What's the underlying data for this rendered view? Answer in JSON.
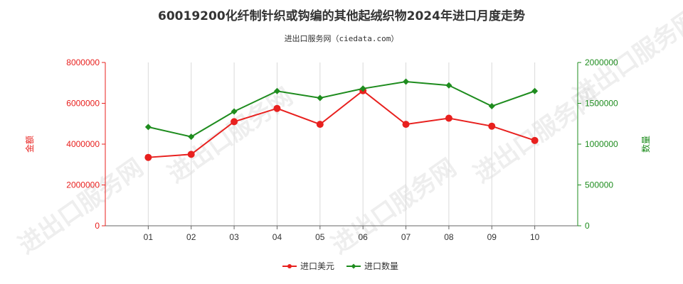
{
  "chart_data": {
    "type": "line",
    "title": "60019200化纤制针织或钩编的其他起绒织物2024年进口月度走势",
    "subtitle": "进出口服务网（ciedata.com）",
    "categories": [
      "01",
      "02",
      "03",
      "04",
      "05",
      "06",
      "07",
      "08",
      "09",
      "10"
    ],
    "y_left": {
      "label": "金额",
      "ylim": [
        0,
        8000000
      ],
      "ticks": [
        "0",
        "2000000",
        "4000000",
        "6000000",
        "8000000"
      ],
      "color": "#e8201e"
    },
    "y_right": {
      "label": "数量",
      "ylim": [
        0,
        2000000
      ],
      "ticks": [
        "0",
        "500000",
        "1000000",
        "1500000",
        "2000000"
      ],
      "color": "#1e8c1e"
    },
    "series": [
      {
        "name": "进口美元",
        "axis": "left",
        "color": "#e8201e",
        "marker": "circle",
        "values": [
          3350000,
          3500000,
          5100000,
          5750000,
          4970000,
          6620000,
          4970000,
          5270000,
          4880000,
          4180000
        ]
      },
      {
        "name": "进口数量",
        "axis": "right",
        "color": "#1e8c1e",
        "marker": "diamond",
        "values": [
          1210000,
          1090000,
          1400000,
          1650000,
          1565000,
          1680000,
          1765000,
          1720000,
          1465000,
          1650000
        ]
      }
    ],
    "grid": {
      "vertical": true,
      "horizontal": false
    },
    "legend_position": "bottom-center",
    "watermark": "进出口服务网"
  }
}
